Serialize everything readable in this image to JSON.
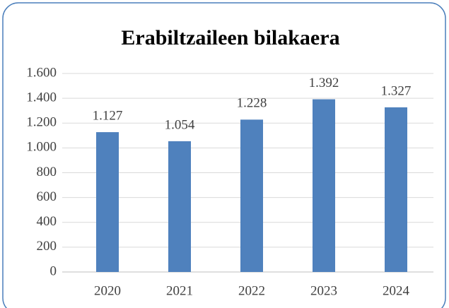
{
  "chart_data": {
    "type": "bar",
    "title": "Erabiltzaileen bilakaera",
    "categories": [
      "2020",
      "2021",
      "2022",
      "2023",
      "2024"
    ],
    "values": [
      1127,
      1054,
      1228,
      1392,
      1327
    ],
    "value_labels": [
      "1.127",
      "1.054",
      "1.228",
      "1.392",
      "1.327"
    ],
    "color": "#4f81bd",
    "ylim": [
      0,
      1600
    ],
    "yticks": [
      0,
      200,
      400,
      600,
      800,
      {
        "value": 1000,
        "label": "1.000"
      },
      {
        "value": 1200,
        "label": "1.200"
      },
      {
        "value": 1400,
        "label": "1.400"
      },
      {
        "value": 1600,
        "label": "1.600"
      }
    ],
    "grid": true
  }
}
